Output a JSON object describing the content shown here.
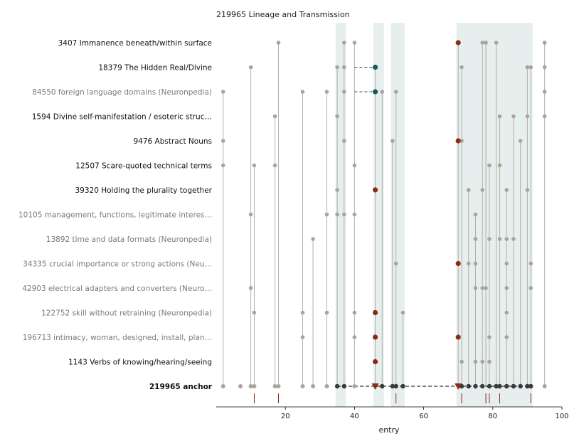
{
  "chart_data": {
    "type": "scatter",
    "title": "219965  Lineage and Transmission",
    "xlabel": "entry",
    "xlim": [
      0,
      100
    ],
    "xticks": [
      20,
      40,
      60,
      80,
      100
    ],
    "grid": false,
    "colors": {
      "stem": "#b4b0a6",
      "dot": "#a9a59b",
      "highlight": "#8b2c12",
      "teal": "#1c5a5a",
      "anchor_dot": "#3a3a3a",
      "band": "#e6eeee",
      "axis": "#000000",
      "muted_label": "#7a7a7a",
      "rug": "#8b2c12"
    },
    "bands": [
      [
        34.5,
        37.5
      ],
      [
        45.5,
        48.5
      ],
      [
        50.5,
        54.5
      ],
      [
        69.5,
        91.5
      ]
    ],
    "rug": [
      11,
      18,
      52,
      71,
      78,
      79,
      82,
      91
    ],
    "rows": [
      {
        "label": "3407  Immanence beneath/within surface",
        "muted": false,
        "points": [
          18,
          37,
          40,
          77,
          78,
          81,
          95
        ],
        "highlight": [
          70
        ],
        "teal": []
      },
      {
        "label": "18379  The Hidden Real/Divine",
        "muted": false,
        "points": [
          10,
          35,
          37,
          71,
          90,
          91,
          95
        ],
        "highlight": [],
        "teal": [
          46
        ]
      },
      {
        "label": "84550  foreign language domains (Neuronpedia)",
        "muted": true,
        "points": [
          2,
          25,
          32,
          37,
          48,
          52,
          95
        ],
        "highlight": [],
        "teal": [
          46
        ]
      },
      {
        "label": "1594  Divine self-manifestation / esoteric struc…",
        "muted": false,
        "points": [
          17,
          35,
          82,
          86,
          90,
          95
        ],
        "highlight": [],
        "teal": []
      },
      {
        "label": "9476  Abstract Nouns",
        "muted": false,
        "points": [
          2,
          37,
          51,
          71,
          88
        ],
        "highlight": [
          70
        ],
        "teal": []
      },
      {
        "label": "12507  Scare-quoted technical terms",
        "muted": false,
        "points": [
          2,
          11,
          17,
          40,
          79,
          82
        ],
        "highlight": [],
        "teal": []
      },
      {
        "label": "39320  Holding the plurality together",
        "muted": false,
        "points": [
          35,
          73,
          77,
          84,
          90
        ],
        "highlight": [
          46
        ],
        "teal": []
      },
      {
        "label": "10105  management, functions, legitimate interes…",
        "muted": true,
        "points": [
          10,
          32,
          35,
          37,
          40,
          75
        ],
        "highlight": [],
        "teal": []
      },
      {
        "label": "13892  time and data formats (Neuronpedia)",
        "muted": true,
        "points": [
          28,
          75,
          79,
          82,
          84,
          86
        ],
        "highlight": [],
        "teal": []
      },
      {
        "label": "34335  crucial importance or strong actions (Neu…",
        "muted": true,
        "points": [
          52,
          73,
          75,
          84,
          91
        ],
        "highlight": [
          70
        ],
        "teal": []
      },
      {
        "label": "42903  electrical adapters and converters (Neuro…",
        "muted": true,
        "points": [
          10,
          75,
          77,
          78,
          84,
          91
        ],
        "highlight": [],
        "teal": []
      },
      {
        "label": "122752  skill without retraining (Neuronpedia)",
        "muted": true,
        "points": [
          11,
          25,
          32,
          40,
          54,
          84
        ],
        "highlight": [
          46
        ],
        "teal": []
      },
      {
        "label": "196713  intimacy, woman, designed, install, plan…",
        "muted": true,
        "points": [
          25,
          40,
          79,
          84
        ],
        "highlight": [
          46,
          70
        ],
        "teal": []
      },
      {
        "label": "1143  Verbs of knowing/hearing/seeing",
        "muted": false,
        "points": [
          71,
          75,
          77,
          79
        ],
        "highlight": [
          46
        ],
        "teal": []
      }
    ],
    "anchor": {
      "label": "219965  anchor",
      "light_points": [
        2,
        7,
        10,
        11,
        17,
        18,
        25,
        28,
        32,
        40,
        95
      ],
      "dark_points": [
        35,
        37,
        48,
        51,
        52,
        54,
        71,
        73,
        75,
        77,
        79,
        81,
        82,
        84,
        86,
        88,
        90,
        91
      ],
      "markers": [
        46,
        70
      ],
      "dashed_from": 35,
      "dashed_to": 91
    }
  }
}
